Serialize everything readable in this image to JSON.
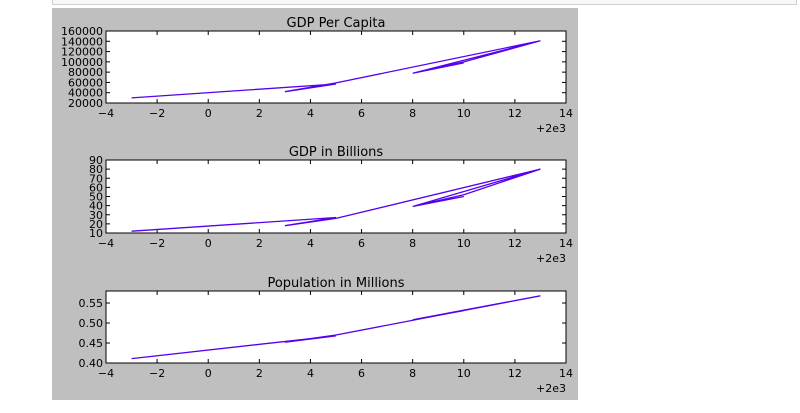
{
  "chart_data": [
    {
      "type": "line",
      "title": "GDP Per Capita",
      "x_offset_label": "+2e3",
      "xlim": [
        -4,
        14
      ],
      "ylim": [
        20000,
        160000
      ],
      "xticks": [
        "−4",
        "−2",
        "0",
        "2",
        "4",
        "6",
        "8",
        "10",
        "12",
        "14"
      ],
      "yticks": [
        "20000",
        "40000",
        "60000",
        "80000",
        "100000",
        "120000",
        "140000",
        "160000"
      ],
      "color": "#5500ee",
      "series": [
        {
          "x": [
            -3,
            5,
            3,
            5,
            13,
            8,
            10,
            8,
            10,
            13
          ],
          "y": [
            30000,
            57000,
            42000,
            59000,
            141000,
            78000,
            98000,
            78000,
            100000,
            141000
          ]
        }
      ]
    },
    {
      "type": "line",
      "title": "GDP in Billions",
      "x_offset_label": "+2e3",
      "xlim": [
        -4,
        14
      ],
      "ylim": [
        10,
        90
      ],
      "xticks": [
        "−4",
        "−2",
        "0",
        "2",
        "4",
        "6",
        "8",
        "10",
        "12",
        "14"
      ],
      "yticks": [
        "10",
        "20",
        "30",
        "40",
        "50",
        "60",
        "70",
        "80",
        "90"
      ],
      "color": "#5500ee",
      "series": [
        {
          "x": [
            -3,
            5,
            3,
            5,
            13,
            8,
            10,
            8,
            10,
            13
          ],
          "y": [
            12,
            27,
            18,
            26,
            80,
            39,
            50,
            39,
            52,
            80
          ]
        }
      ]
    },
    {
      "type": "line",
      "title": "Population in  Millions",
      "x_offset_label": "+2e3",
      "xlim": [
        -4,
        14
      ],
      "ylim": [
        0.4,
        0.58
      ],
      "xticks": [
        "−4",
        "−2",
        "0",
        "2",
        "4",
        "6",
        "8",
        "10",
        "12",
        "14"
      ],
      "yticks": [
        "0.40",
        "0.45",
        "0.50",
        "0.55"
      ],
      "ytick_values": [
        0.4,
        0.45,
        0.5,
        0.55
      ],
      "color": "#5500ee",
      "series": [
        {
          "x": [
            -3,
            5,
            3,
            5,
            13,
            8,
            10,
            8,
            10,
            13
          ],
          "y": [
            0.411,
            0.468,
            0.452,
            0.47,
            0.568,
            0.508,
            0.531,
            0.508,
            0.532,
            0.568
          ]
        }
      ]
    }
  ]
}
